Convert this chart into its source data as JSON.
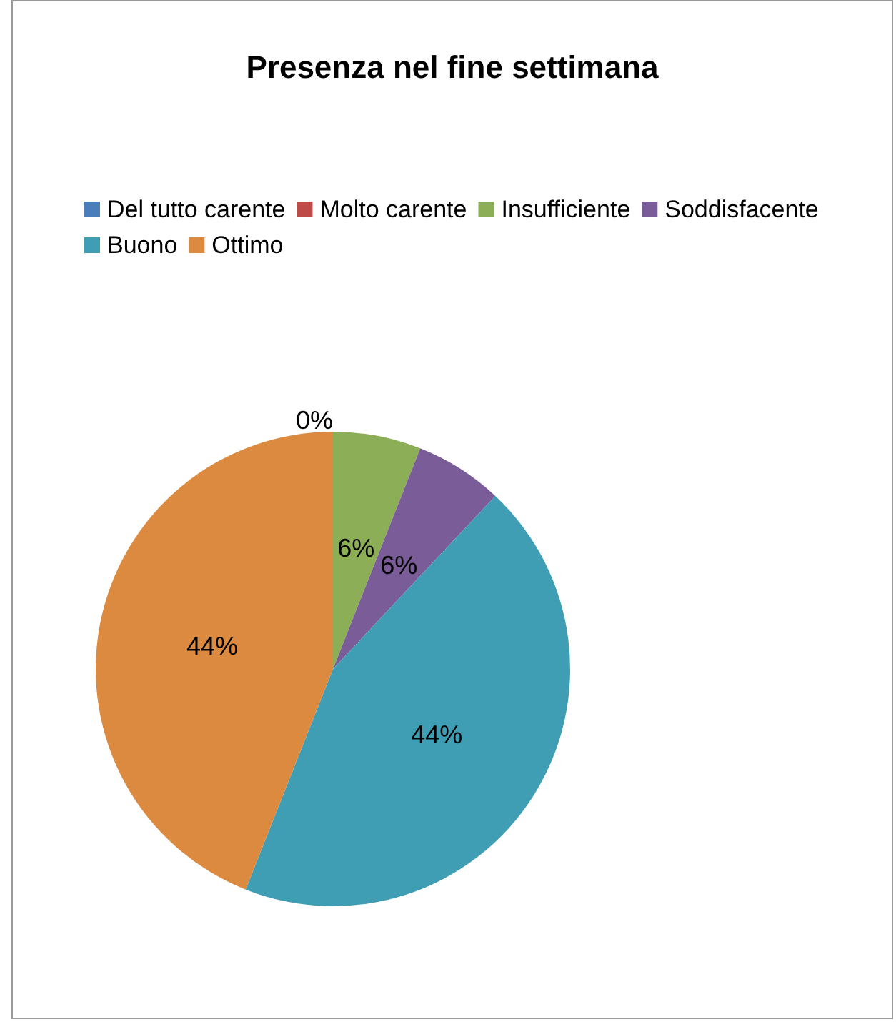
{
  "chart_data": {
    "type": "pie",
    "title": "Presenza nel fine settimana",
    "categories": [
      "Del tutto carente",
      "Molto carente",
      "Insufficiente",
      "Soddisfacente",
      "Buono",
      "Ottimo"
    ],
    "values": [
      0,
      0,
      6,
      6,
      44,
      44
    ],
    "colors": [
      "#4a7ebb",
      "#be4b48",
      "#8cae56",
      "#7a5c98",
      "#409eb4",
      "#dc8a3f"
    ],
    "value_labels": [
      "0%",
      null,
      "6%",
      "6%",
      "44%",
      "44%"
    ],
    "legend": "top"
  }
}
